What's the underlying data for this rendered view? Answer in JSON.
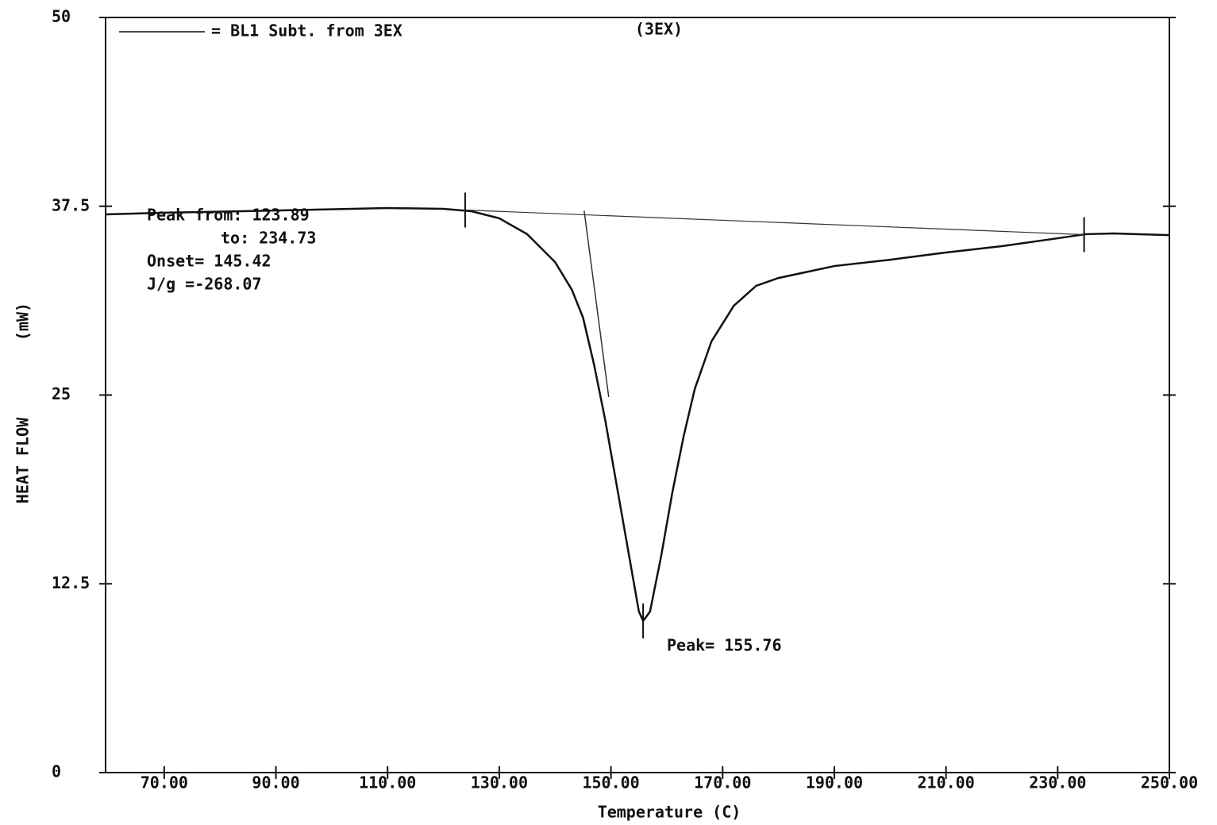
{
  "chart_data": {
    "type": "line",
    "title": "(3EX)",
    "x_label": "Temperature (C)",
    "y_label": "HEAT FLOW",
    "y_unit": "(mW)",
    "xlim": [
      59.5,
      250
    ],
    "ylim": [
      0,
      50
    ],
    "xticks": [
      {
        "value": 70,
        "label": "70.00"
      },
      {
        "value": 90,
        "label": "90.00"
      },
      {
        "value": 110,
        "label": "110.00"
      },
      {
        "value": 130,
        "label": "130.00"
      },
      {
        "value": 150,
        "label": "150.00"
      },
      {
        "value": 170,
        "label": "170.00"
      },
      {
        "value": 190,
        "label": "190.00"
      },
      {
        "value": 210,
        "label": "210.00"
      },
      {
        "value": 230,
        "label": "230.00"
      },
      {
        "value": 250,
        "label": "250.00"
      }
    ],
    "yticks": [
      0,
      12.5,
      25,
      37.5,
      50
    ],
    "grid": false,
    "legend": "top-left",
    "series": [
      {
        "name": "= BL1 Subt. from 3EX",
        "color": "#111111",
        "x": [
          59.5,
          70,
          90,
          110,
          120,
          125,
          130,
          135,
          140,
          143,
          145,
          147,
          149,
          151,
          153,
          155,
          155.76,
          157,
          159,
          161,
          163,
          165,
          168,
          172,
          176,
          180,
          190,
          200,
          210,
          220,
          230,
          235,
          240,
          250
        ],
        "values": [
          36.96,
          37.07,
          37.22,
          37.38,
          37.33,
          37.17,
          36.7,
          35.65,
          33.8,
          31.97,
          30.13,
          26.97,
          23.29,
          19.09,
          14.88,
          10.67,
          10.04,
          10.67,
          14.35,
          18.56,
          22.24,
          25.39,
          28.55,
          30.91,
          32.23,
          32.75,
          33.54,
          33.96,
          34.44,
          34.86,
          35.38,
          35.65,
          35.7,
          35.59
        ]
      }
    ],
    "baseline": {
      "x": [
        123.89,
        234.73
      ],
      "values": [
        37.25,
        35.62
      ]
    },
    "tangent": {
      "x": [
        145.2,
        149.6
      ],
      "values": [
        37.2,
        24.87
      ]
    },
    "peak": {
      "x": 155.76,
      "value": 10.04
    },
    "annotations": [
      "Peak from: 123.89",
      "to: 234.73",
      "Onset= 145.42",
      "J/g =-268.07",
      "Peak= 155.76"
    ]
  }
}
